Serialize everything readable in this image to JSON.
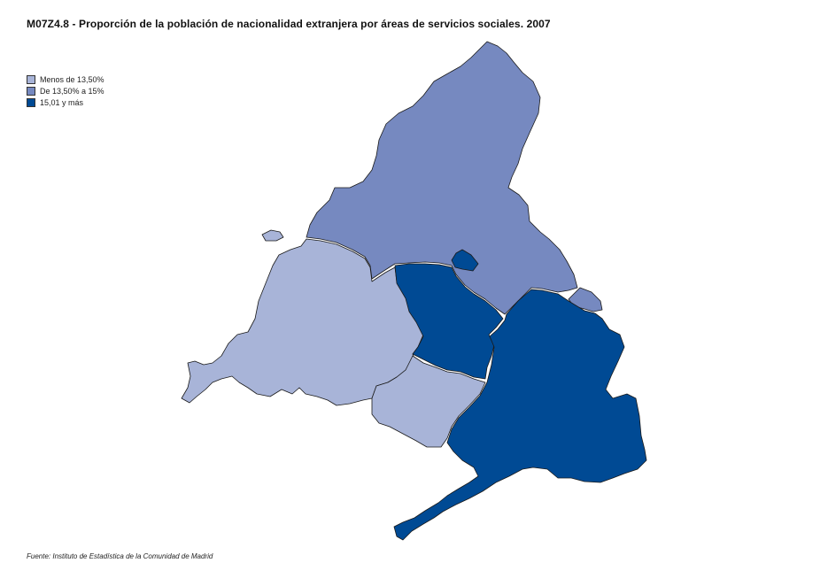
{
  "title": "M07Z4.8 - Proporción de la población de nacionalidad extranjera por áreas de servicios sociales. 2007",
  "legend": {
    "items": [
      {
        "label": "Menos de 13,50%",
        "color": "#a8b4d8"
      },
      {
        "label": "De 13,50% a 15%",
        "color": "#7689c0"
      },
      {
        "label": "15,01 y más",
        "color": "#004a94"
      }
    ]
  },
  "source": "Fuente: Instituto de Estadística de la Comunidad de Madrid",
  "map": {
    "regions": [
      {
        "name": "north",
        "category": "De 13,50% a 15%",
        "color": "#7689c0"
      },
      {
        "name": "east-small",
        "category": "De 13,50% a 15%",
        "color": "#7689c0"
      },
      {
        "name": "enclave-north",
        "category": "15,01 y más",
        "color": "#004a94"
      },
      {
        "name": "west",
        "category": "Menos de 13,50%",
        "color": "#a8b4d8"
      },
      {
        "name": "west-islet",
        "category": "Menos de 13,50%",
        "color": "#a8b4d8"
      },
      {
        "name": "south-central",
        "category": "Menos de 13,50%",
        "color": "#a8b4d8"
      },
      {
        "name": "central",
        "category": "15,01 y más",
        "color": "#004a94"
      },
      {
        "name": "southeast",
        "category": "15,01 y más",
        "color": "#004a94"
      }
    ]
  }
}
